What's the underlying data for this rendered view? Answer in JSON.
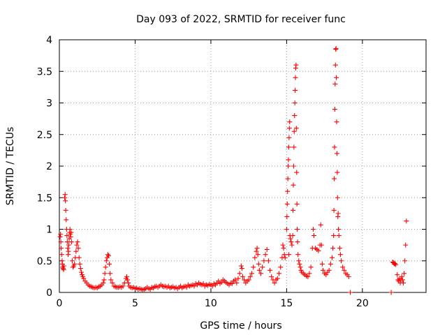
{
  "chart_data": {
    "type": "scatter",
    "title": "Day 093 of 2022, SRMTID for receiver func",
    "xlabel": "GPS time / hours",
    "ylabel": "SRMTID / TECUs",
    "xlim": [
      0,
      24.2
    ],
    "ylim": [
      0,
      4
    ],
    "x_ticks": [
      0,
      5,
      10,
      15,
      20
    ],
    "x_tick_labels": [
      "0",
      "5",
      "10",
      "15",
      "20"
    ],
    "y_ticks": [
      0,
      0.5,
      1,
      1.5,
      2,
      2.5,
      3,
      3.5,
      4
    ],
    "y_tick_labels": [
      "0",
      "0.5",
      "1",
      "1.5",
      "2",
      "2.5",
      "3",
      "3.5",
      "4"
    ],
    "grid": true,
    "marker": "plus",
    "color": "#ff0000",
    "series": [
      {
        "name": "SRMTID",
        "points": [
          [
            0.05,
            0.88
          ],
          [
            0.08,
            0.92
          ],
          [
            0.1,
            0.8
          ],
          [
            0.12,
            0.7
          ],
          [
            0.15,
            0.6
          ],
          [
            0.18,
            0.5
          ],
          [
            0.2,
            0.45
          ],
          [
            0.22,
            0.4
          ],
          [
            0.25,
            0.38
          ],
          [
            0.28,
            0.36
          ],
          [
            0.3,
            0.42
          ],
          [
            0.35,
            1.5
          ],
          [
            0.38,
            1.55
          ],
          [
            0.4,
            1.45
          ],
          [
            0.42,
            1.3
          ],
          [
            0.45,
            1.15
          ],
          [
            0.48,
            1.0
          ],
          [
            0.5,
            0.9
          ],
          [
            0.52,
            0.8
          ],
          [
            0.55,
            0.7
          ],
          [
            0.58,
            0.6
          ],
          [
            0.6,
            0.65
          ],
          [
            0.62,
            0.75
          ],
          [
            0.65,
            0.85
          ],
          [
            0.68,
            0.95
          ],
          [
            0.7,
            1.0
          ],
          [
            0.72,
            0.92
          ],
          [
            0.75,
            0.88
          ],
          [
            0.78,
            0.95
          ],
          [
            0.8,
            0.8
          ],
          [
            0.85,
            0.5
          ],
          [
            0.9,
            0.4
          ],
          [
            0.95,
            0.42
          ],
          [
            1.0,
            0.45
          ],
          [
            1.05,
            0.55
          ],
          [
            1.1,
            0.65
          ],
          [
            1.15,
            0.75
          ],
          [
            1.2,
            0.8
          ],
          [
            1.25,
            0.7
          ],
          [
            1.3,
            0.55
          ],
          [
            1.35,
            0.45
          ],
          [
            1.4,
            0.38
          ],
          [
            1.45,
            0.32
          ],
          [
            1.5,
            0.28
          ],
          [
            1.55,
            0.25
          ],
          [
            1.6,
            0.22
          ],
          [
            1.7,
            0.18
          ],
          [
            1.8,
            0.15
          ],
          [
            1.9,
            0.12
          ],
          [
            2.0,
            0.1
          ],
          [
            2.1,
            0.09
          ],
          [
            2.2,
            0.08
          ],
          [
            2.3,
            0.07
          ],
          [
            2.4,
            0.08
          ],
          [
            2.5,
            0.07
          ],
          [
            2.6,
            0.09
          ],
          [
            2.7,
            0.1
          ],
          [
            2.8,
            0.12
          ],
          [
            2.9,
            0.15
          ],
          [
            2.95,
            0.2
          ],
          [
            3.0,
            0.3
          ],
          [
            3.05,
            0.4
          ],
          [
            3.1,
            0.5
          ],
          [
            3.15,
            0.55
          ],
          [
            3.2,
            0.6
          ],
          [
            3.25,
            0.58
          ],
          [
            3.3,
            0.45
          ],
          [
            3.35,
            0.3
          ],
          [
            3.4,
            0.2
          ],
          [
            3.5,
            0.15
          ],
          [
            3.6,
            0.1
          ],
          [
            3.7,
            0.09
          ],
          [
            3.8,
            0.08
          ],
          [
            3.9,
            0.08
          ],
          [
            4.0,
            0.09
          ],
          [
            4.1,
            0.08
          ],
          [
            4.2,
            0.1
          ],
          [
            4.3,
            0.15
          ],
          [
            4.4,
            0.22
          ],
          [
            4.45,
            0.25
          ],
          [
            4.5,
            0.2
          ],
          [
            4.55,
            0.15
          ],
          [
            4.6,
            0.1
          ],
          [
            4.7,
            0.08
          ],
          [
            4.8,
            0.07
          ],
          [
            4.9,
            0.08
          ],
          [
            5.0,
            0.06
          ],
          [
            5.1,
            0.07
          ],
          [
            5.2,
            0.05
          ],
          [
            5.3,
            0.06
          ],
          [
            5.4,
            0.05
          ],
          [
            5.5,
            0.04
          ],
          [
            5.6,
            0.05
          ],
          [
            5.7,
            0.06
          ],
          [
            5.8,
            0.08
          ],
          [
            5.9,
            0.06
          ],
          [
            6.0,
            0.05
          ],
          [
            6.1,
            0.08
          ],
          [
            6.2,
            0.07
          ],
          [
            6.3,
            0.09
          ],
          [
            6.4,
            0.1
          ],
          [
            6.5,
            0.08
          ],
          [
            6.6,
            0.1
          ],
          [
            6.7,
            0.12
          ],
          [
            6.8,
            0.1
          ],
          [
            6.9,
            0.09
          ],
          [
            7.0,
            0.1
          ],
          [
            7.1,
            0.08
          ],
          [
            7.2,
            0.1
          ],
          [
            7.3,
            0.07
          ],
          [
            7.4,
            0.08
          ],
          [
            7.5,
            0.09
          ],
          [
            7.6,
            0.07
          ],
          [
            7.7,
            0.08
          ],
          [
            7.8,
            0.06
          ],
          [
            7.9,
            0.08
          ],
          [
            8.0,
            0.1
          ],
          [
            8.1,
            0.07
          ],
          [
            8.2,
            0.09
          ],
          [
            8.3,
            0.1
          ],
          [
            8.4,
            0.08
          ],
          [
            8.5,
            0.12
          ],
          [
            8.6,
            0.1
          ],
          [
            8.7,
            0.11
          ],
          [
            8.8,
            0.12
          ],
          [
            8.9,
            0.1
          ],
          [
            9.0,
            0.14
          ],
          [
            9.1,
            0.12
          ],
          [
            9.2,
            0.15
          ],
          [
            9.3,
            0.13
          ],
          [
            9.4,
            0.12
          ],
          [
            9.5,
            0.14
          ],
          [
            9.6,
            0.1
          ],
          [
            9.7,
            0.12
          ],
          [
            9.8,
            0.11
          ],
          [
            9.9,
            0.13
          ],
          [
            10.0,
            0.12
          ],
          [
            10.1,
            0.1
          ],
          [
            10.2,
            0.14
          ],
          [
            10.3,
            0.12
          ],
          [
            10.4,
            0.15
          ],
          [
            10.5,
            0.18
          ],
          [
            10.6,
            0.14
          ],
          [
            10.7,
            0.16
          ],
          [
            10.8,
            0.2
          ],
          [
            10.9,
            0.18
          ],
          [
            11.0,
            0.16
          ],
          [
            11.1,
            0.14
          ],
          [
            11.2,
            0.12
          ],
          [
            11.3,
            0.15
          ],
          [
            11.4,
            0.14
          ],
          [
            11.5,
            0.18
          ],
          [
            11.6,
            0.2
          ],
          [
            11.7,
            0.15
          ],
          [
            11.8,
            0.22
          ],
          [
            11.9,
            0.3
          ],
          [
            12.0,
            0.42
          ],
          [
            12.05,
            0.38
          ],
          [
            12.1,
            0.25
          ],
          [
            12.2,
            0.2
          ],
          [
            12.3,
            0.15
          ],
          [
            12.4,
            0.18
          ],
          [
            12.5,
            0.2
          ],
          [
            12.6,
            0.25
          ],
          [
            12.7,
            0.3
          ],
          [
            12.8,
            0.4
          ],
          [
            12.9,
            0.55
          ],
          [
            13.0,
            0.65
          ],
          [
            13.05,
            0.7
          ],
          [
            13.1,
            0.6
          ],
          [
            13.15,
            0.45
          ],
          [
            13.2,
            0.35
          ],
          [
            13.3,
            0.3
          ],
          [
            13.4,
            0.4
          ],
          [
            13.5,
            0.5
          ],
          [
            13.6,
            0.6
          ],
          [
            13.7,
            0.68
          ],
          [
            13.8,
            0.5
          ],
          [
            13.9,
            0.35
          ],
          [
            14.0,
            0.25
          ],
          [
            14.1,
            0.2
          ],
          [
            14.2,
            0.15
          ],
          [
            14.3,
            0.2
          ],
          [
            14.4,
            0.22
          ],
          [
            14.5,
            0.3
          ],
          [
            14.6,
            0.4
          ],
          [
            14.7,
            0.55
          ],
          [
            14.75,
            0.75
          ],
          [
            14.8,
            0.7
          ],
          [
            14.85,
            0.6
          ],
          [
            14.9,
            0.55
          ],
          [
            15.0,
            1.0
          ],
          [
            15.02,
            1.2
          ],
          [
            15.04,
            1.4
          ],
          [
            15.06,
            1.6
          ],
          [
            15.08,
            1.8
          ],
          [
            15.1,
            2.0
          ],
          [
            15.12,
            2.1
          ],
          [
            15.14,
            2.3
          ],
          [
            15.16,
            2.45
          ],
          [
            15.18,
            2.6
          ],
          [
            15.2,
            2.7
          ],
          [
            15.15,
            0.6
          ],
          [
            15.22,
            0.9
          ],
          [
            15.25,
            0.85
          ],
          [
            15.3,
            0.8
          ],
          [
            15.35,
            0.75
          ],
          [
            15.4,
            0.9
          ],
          [
            15.42,
            1.3
          ],
          [
            15.44,
            1.7
          ],
          [
            15.46,
            2.0
          ],
          [
            15.48,
            2.3
          ],
          [
            15.5,
            2.55
          ],
          [
            15.52,
            2.8
          ],
          [
            15.54,
            3.0
          ],
          [
            15.56,
            3.2
          ],
          [
            15.58,
            3.4
          ],
          [
            15.6,
            3.55
          ],
          [
            15.62,
            3.6
          ],
          [
            15.64,
            2.6
          ],
          [
            15.66,
            1.9
          ],
          [
            15.68,
            1.4
          ],
          [
            15.7,
            1.0
          ],
          [
            15.72,
            0.8
          ],
          [
            15.75,
            0.6
          ],
          [
            15.8,
            0.5
          ],
          [
            15.85,
            0.45
          ],
          [
            15.9,
            0.4
          ],
          [
            15.95,
            0.35
          ],
          [
            16.0,
            0.32
          ],
          [
            16.1,
            0.3
          ],
          [
            16.2,
            0.28
          ],
          [
            16.3,
            0.26
          ],
          [
            16.4,
            0.25
          ],
          [
            16.5,
            0.3
          ],
          [
            16.6,
            0.4
          ],
          [
            16.7,
            0.7
          ],
          [
            16.75,
            1.0
          ],
          [
            16.8,
            0.9
          ],
          [
            16.9,
            0.7
          ],
          [
            17.0,
            0.68
          ],
          [
            17.1,
            0.66
          ],
          [
            17.2,
            0.75
          ],
          [
            17.25,
            1.07
          ],
          [
            17.3,
            0.75
          ],
          [
            17.35,
            0.45
          ],
          [
            17.4,
            0.35
          ],
          [
            17.5,
            0.3
          ],
          [
            17.6,
            0.28
          ],
          [
            17.7,
            0.32
          ],
          [
            17.8,
            0.35
          ],
          [
            17.9,
            0.45
          ],
          [
            18.0,
            0.55
          ],
          [
            18.05,
            0.7
          ],
          [
            18.1,
            0.9
          ],
          [
            18.12,
            1.3
          ],
          [
            18.14,
            1.8
          ],
          [
            18.16,
            2.3
          ],
          [
            18.18,
            2.9
          ],
          [
            18.2,
            3.3
          ],
          [
            18.22,
            3.6
          ],
          [
            18.24,
            3.85
          ],
          [
            18.26,
            3.86
          ],
          [
            18.28,
            3.4
          ],
          [
            18.3,
            2.7
          ],
          [
            18.32,
            2.2
          ],
          [
            18.34,
            1.9
          ],
          [
            18.36,
            1.5
          ],
          [
            18.38,
            1.2
          ],
          [
            18.4,
            1.25
          ],
          [
            18.42,
            1.0
          ],
          [
            18.45,
            0.9
          ],
          [
            18.5,
            0.7
          ],
          [
            18.55,
            0.6
          ],
          [
            18.6,
            0.5
          ],
          [
            18.7,
            0.4
          ],
          [
            18.8,
            0.35
          ],
          [
            18.9,
            0.3
          ],
          [
            19.0,
            0.28
          ],
          [
            19.1,
            0.25
          ],
          [
            19.2,
            0.0
          ],
          [
            21.9,
            0.0
          ],
          [
            22.0,
            0.48
          ],
          [
            22.05,
            0.47
          ],
          [
            22.1,
            0.45
          ],
          [
            22.15,
            0.46
          ],
          [
            22.2,
            0.44
          ],
          [
            22.3,
            0.28
          ],
          [
            22.35,
            0.2
          ],
          [
            22.4,
            0.18
          ],
          [
            22.45,
            0.22
          ],
          [
            22.5,
            0.15
          ],
          [
            22.55,
            0.2
          ],
          [
            22.6,
            0.25
          ],
          [
            22.65,
            0.2
          ],
          [
            22.7,
            0.15
          ],
          [
            22.75,
            0.3
          ],
          [
            22.8,
            0.5
          ],
          [
            22.85,
            0.75
          ],
          [
            22.9,
            1.13
          ]
        ]
      }
    ]
  }
}
